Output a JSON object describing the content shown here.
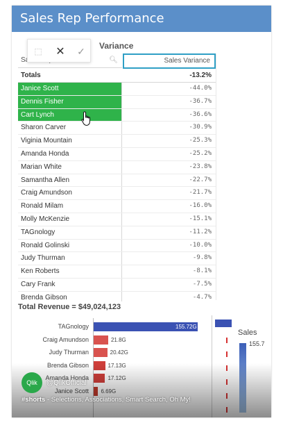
{
  "header": {
    "title": "Sales Rep Performance"
  },
  "selection_toolbar": {
    "cancel_glyph": "✕",
    "confirm_glyph": "✓",
    "lasso_glyph": "⬚"
  },
  "table": {
    "title": "Variance",
    "col_rep": "Sales Rep",
    "col_variance": "Sales Variance",
    "totals_label": "Totals",
    "totals_value": "-13.2%",
    "rows": [
      {
        "name": "Janice Scott",
        "variance": "-44.0%",
        "selected": true
      },
      {
        "name": "Dennis Fisher",
        "variance": "-36.7%",
        "selected": true
      },
      {
        "name": "Cart Lynch",
        "variance": "-36.6%",
        "selected": true
      },
      {
        "name": "Sharon Carver",
        "variance": "-30.9%",
        "selected": false
      },
      {
        "name": "Viginia Mountain",
        "variance": "-25.3%",
        "selected": false
      },
      {
        "name": "Amanda Honda",
        "variance": "-25.2%",
        "selected": false
      },
      {
        "name": "Marian White",
        "variance": "-23.8%",
        "selected": false
      },
      {
        "name": "Samantha Allen",
        "variance": "-22.7%",
        "selected": false
      },
      {
        "name": "Craig Amundson",
        "variance": "-21.7%",
        "selected": false
      },
      {
        "name": "Ronald Milam",
        "variance": "-16.0%",
        "selected": false
      },
      {
        "name": "Molly McKenzie",
        "variance": "-15.1%",
        "selected": false
      },
      {
        "name": "TAGnology",
        "variance": "-11.2%",
        "selected": false
      },
      {
        "name": "Ronald Golinski",
        "variance": "-10.0%",
        "selected": false
      },
      {
        "name": "Judy Thurman",
        "variance": "-9.8%",
        "selected": false
      },
      {
        "name": "Ken Roberts",
        "variance": "-8.1%",
        "selected": false
      },
      {
        "name": "Cary Frank",
        "variance": "-7.5%",
        "selected": false
      },
      {
        "name": "Brenda Gibson",
        "variance": "-4.7%",
        "selected": false
      }
    ]
  },
  "revenue": {
    "title": "Total Revenue = $49,024,123"
  },
  "chart_data": {
    "type": "bar",
    "orientation": "horizontal",
    "categories": [
      "TAGnology",
      "Craig Amundson",
      "Judy Thurman",
      "Brenda Gibson",
      "Amanda Honda",
      "Janice Scott"
    ],
    "values": [
      155.72,
      21.8,
      20.42,
      17.13,
      17.12,
      6.69
    ],
    "value_labels": [
      "155.72G",
      "21.8G",
      "20.42G",
      "17.13G",
      "17.12G",
      "6.69G"
    ],
    "colors": [
      "#3b52b3",
      "#d9534f",
      "#d9534f",
      "#cf3f3a",
      "#cf3f3a",
      "#c0392b"
    ]
  },
  "legend": {
    "title": "Sales",
    "max_label": "155.7"
  },
  "video": {
    "avatar_text": "Qlik",
    "channel": "@QlikOfficial",
    "hashtag": "#shorts",
    "caption": " - Selections, Associations, Smart Search, Oh My!"
  },
  "colors": {
    "header": "#5b8fc9",
    "selected": "#2fb34a",
    "focus_border": "#2f9fc5"
  }
}
